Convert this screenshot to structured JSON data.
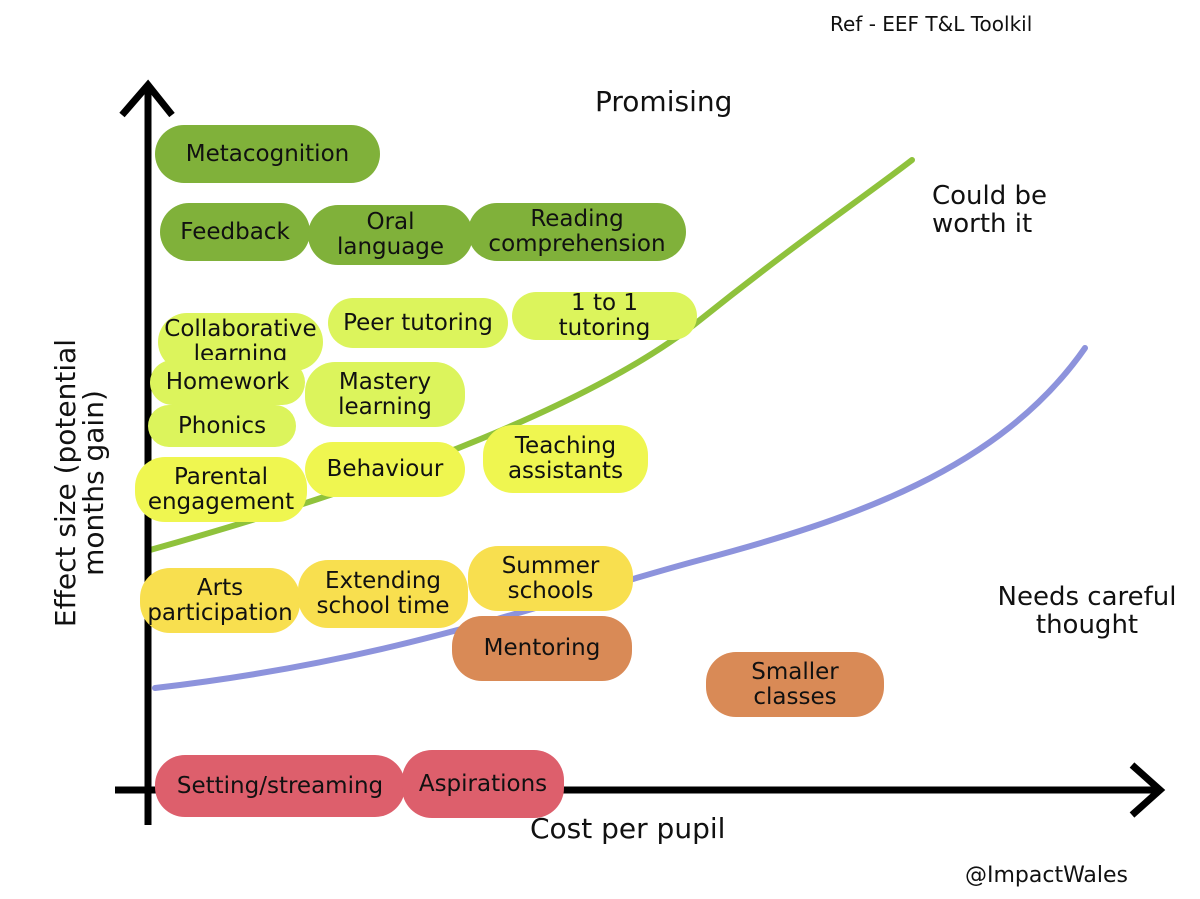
{
  "note": "Ref - EEF T&L Toolkil",
  "axes": {
    "y_label": "Effect size (potential months gain)",
    "x_label": "Cost per pupil"
  },
  "zones": [
    "Promising",
    "Could be worth it",
    "Needs careful thought"
  ],
  "groups": [
    {
      "color": "#80b13a",
      "items": [
        "Metacognition",
        "Feedback",
        "Oral language",
        "Reading comprehension"
      ]
    },
    {
      "color": "#dcf45c",
      "items": [
        "Collaborative learning",
        "Peer tutoring",
        "1 to 1 tutoring",
        "Homework",
        "Mastery learning",
        "Phonics"
      ]
    },
    {
      "color": "#eff650",
      "items": [
        "Parental engagement",
        "Behaviour",
        "Teaching assistants"
      ]
    },
    {
      "color": "#f8df4f",
      "items": [
        "Arts participation",
        "Extending school time",
        "Summer schools"
      ]
    },
    {
      "color": "#d98a56",
      "items": [
        "Mentoring",
        "Smaller classes"
      ]
    },
    {
      "color": "#dd5f6c",
      "items": [
        "Setting/streaming",
        "Aspirations"
      ]
    }
  ],
  "credit": "@ImpactWales"
}
